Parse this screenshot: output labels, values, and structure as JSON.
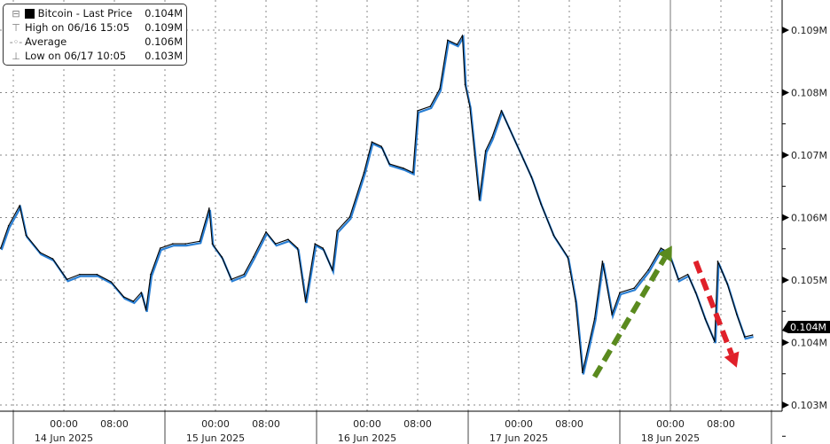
{
  "chart_data": {
    "type": "line",
    "title": "",
    "xlabel": "",
    "ylabel": "",
    "ylim": [
      0.1029,
      0.1095
    ],
    "y_ticks": [
      "0.103M",
      "0.104M",
      "0.105M",
      "0.106M",
      "0.107M",
      "0.108M",
      "0.109M"
    ],
    "y_tick_values": [
      0.103,
      0.104,
      0.105,
      0.106,
      0.107,
      0.108,
      0.109
    ],
    "x_time_ticks": [
      "00:00",
      "08:00",
      "00:00",
      "08:00",
      "00:00",
      "08:00",
      "00:00",
      "08:00",
      "00:00",
      "08:00"
    ],
    "x_time_tick_values": [
      "2025-06-14T00:00",
      "2025-06-14T08:00",
      "2025-06-15T00:00",
      "2025-06-15T08:00",
      "2025-06-16T00:00",
      "2025-06-16T08:00",
      "2025-06-17T00:00",
      "2025-06-17T08:00",
      "2025-06-18T00:00",
      "2025-06-18T08:00"
    ],
    "x_date_labels": [
      "14 Jun 2025",
      "15 Jun 2025",
      "16 Jun 2025",
      "17 Jun 2025",
      "18 Jun 2025"
    ],
    "x_date_values": [
      "2025-06-14T00:00",
      "2025-06-15T00:00",
      "2025-06-16T00:00",
      "2025-06-17T00:00",
      "2025-06-18T00:00"
    ],
    "grid": true,
    "legend_position": "top-left",
    "last_price_label": "0.104M",
    "last_price": 0.10412,
    "series": [
      {
        "name": "Bitcoin - Last Price",
        "color": "#000000",
        "accent": "#2a7fd4",
        "x": [
          "2025-06-13T14:00",
          "2025-06-13T15:15",
          "2025-06-13T17:00",
          "2025-06-13T18:00",
          "2025-06-13T20:15",
          "2025-06-13T22:15",
          "2025-06-14T00:30",
          "2025-06-14T02:30",
          "2025-06-14T05:15",
          "2025-06-14T07:30",
          "2025-06-14T09:30",
          "2025-06-14T11:00",
          "2025-06-14T12:15",
          "2025-06-14T13:00",
          "2025-06-14T13:45",
          "2025-06-14T15:15",
          "2025-06-14T17:15",
          "2025-06-14T19:15",
          "2025-06-14T21:30",
          "2025-06-14T23:00",
          "2025-06-14T23:30",
          "2025-06-15T01:00",
          "2025-06-15T02:30",
          "2025-06-15T04:30",
          "2025-06-15T06:00",
          "2025-06-15T08:00",
          "2025-06-15T09:30",
          "2025-06-15T11:30",
          "2025-06-15T13:00",
          "2025-06-15T14:15",
          "2025-06-15T15:45",
          "2025-06-15T17:00",
          "2025-06-15T18:30",
          "2025-06-15T19:15",
          "2025-06-15T21:15",
          "2025-06-15T23:30",
          "2025-06-16T00:45",
          "2025-06-16T02:15",
          "2025-06-16T03:30",
          "2025-06-16T05:45",
          "2025-06-16T07:15",
          "2025-06-16T08:00",
          "2025-06-16T10:00",
          "2025-06-16T11:30",
          "2025-06-16T12:45",
          "2025-06-16T14:15",
          "2025-06-16T15:05",
          "2025-06-16T15:30",
          "2025-06-16T16:15",
          "2025-06-16T17:45",
          "2025-06-16T18:45",
          "2025-06-16T19:45",
          "2025-06-16T21:15",
          "2025-06-16T22:30",
          "2025-06-17T00:45",
          "2025-06-17T02:00",
          "2025-06-17T03:30",
          "2025-06-17T05:30",
          "2025-06-17T07:45",
          "2025-06-17T09:00",
          "2025-06-17T10:05",
          "2025-06-17T12:00",
          "2025-06-17T13:15",
          "2025-06-17T14:45",
          "2025-06-17T16:00",
          "2025-06-17T18:15",
          "2025-06-17T20:30",
          "2025-06-17T22:30",
          "2025-06-17T23:45",
          "2025-06-18T01:15",
          "2025-06-18T02:45",
          "2025-06-18T04:00",
          "2025-06-18T05:30",
          "2025-06-18T07:00",
          "2025-06-18T07:30",
          "2025-06-18T09:00",
          "2025-06-18T10:30",
          "2025-06-18T11:45",
          "2025-06-18T13:00"
        ],
        "values": [
          0.10551,
          0.10587,
          0.10619,
          0.10572,
          0.10544,
          0.10534,
          0.10501,
          0.10509,
          0.10509,
          0.10497,
          0.10473,
          0.10466,
          0.1048,
          0.10452,
          0.10509,
          0.10551,
          0.10558,
          0.10558,
          0.10562,
          0.10615,
          0.10558,
          0.10537,
          0.10501,
          0.10509,
          0.10537,
          0.10577,
          0.10558,
          0.10565,
          0.10551,
          0.10466,
          0.10558,
          0.10551,
          0.10516,
          0.10579,
          0.10601,
          0.10672,
          0.10721,
          0.10714,
          0.10686,
          0.10679,
          0.10672,
          0.10771,
          0.10778,
          0.10806,
          0.10884,
          0.10877,
          0.10891,
          0.10813,
          0.10778,
          0.10629,
          0.10707,
          0.10728,
          0.10771,
          0.10743,
          0.10693,
          0.10665,
          0.10622,
          0.10572,
          0.10537,
          0.10466,
          0.10352,
          0.10438,
          0.1053,
          0.10445,
          0.1048,
          0.10487,
          0.10516,
          0.10551,
          0.10544,
          0.10501,
          0.10509,
          0.1048,
          0.10438,
          0.10402,
          0.1053,
          0.10494,
          0.10445,
          0.10409,
          0.10412
        ]
      }
    ],
    "annotations": [
      {
        "type": "arrow",
        "color": "#5a8a1e",
        "style": "dashed",
        "from": [
          "2025-06-17T12:00",
          0.10345
        ],
        "to": [
          "2025-06-18T00:15",
          0.10555
        ]
      },
      {
        "type": "arrow",
        "color": "#e0202a",
        "style": "dashed",
        "from": [
          "2025-06-18T04:00",
          0.1053
        ],
        "to": [
          "2025-06-18T10:30",
          0.1036
        ]
      }
    ]
  },
  "legend": {
    "series_label": "Bitcoin - Last Price",
    "series_value": "0.104M",
    "high_label": "High on 06/16 15:05",
    "high_value": "0.109M",
    "avg_label": "Average",
    "avg_value": "0.106M",
    "low_label": "Low on 06/17 10:05",
    "low_value": "0.103M"
  }
}
